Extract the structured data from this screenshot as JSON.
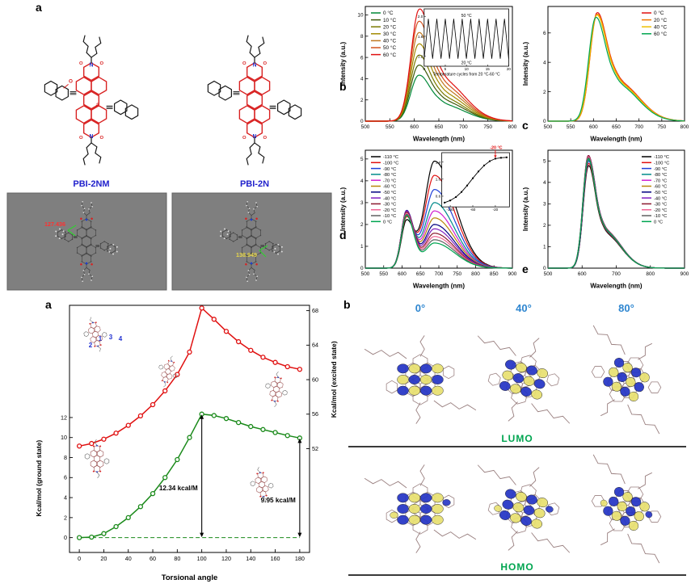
{
  "figure": {
    "chem": {
      "label": "a",
      "molecule_names": [
        "PBI-2NM",
        "PBI-2N"
      ],
      "name_color": "#2222cc",
      "bay_label": "a",
      "methoxy_label": "O",
      "models": [
        {
          "angle": "127.436",
          "color": "#ff3030"
        },
        {
          "angle": "138.949",
          "color": "#e8d84a"
        }
      ]
    },
    "orbitals": {
      "label": "b",
      "angle_headers": [
        "0°",
        "40°",
        "80°"
      ],
      "header_color": "#2e86d0",
      "row_labels": [
        "LUMO",
        "HOMO"
      ],
      "row_label_color": "#00a550"
    }
  },
  "chart_data": [
    {
      "id": "spectrum_b",
      "panel_label": "b",
      "type": "line",
      "xlabel": "Wavelength (nm)",
      "ylabel": "Intensity (a.u.)",
      "xlim": [
        500,
        800
      ],
      "xticks": [
        500,
        550,
        600,
        650,
        700,
        750,
        800
      ],
      "ylim": [
        0,
        10.8
      ],
      "yticks": [
        0,
        2,
        4,
        6,
        8,
        10
      ],
      "legend_pos": "top-left",
      "series": [
        {
          "name": "0 °C",
          "color": "#008837",
          "peaks": [
            [
              608,
              4.1,
              16,
              22
            ],
            [
              656,
              1.55,
              24,
              46
            ]
          ]
        },
        {
          "name": "10 °C",
          "color": "#3f5a0a",
          "peaks": [
            [
              608,
              5.0,
              16,
              22
            ],
            [
              656,
              1.9,
              24,
              46
            ]
          ]
        },
        {
          "name": "20 °C",
          "color": "#7a7a00",
          "peaks": [
            [
              608,
              5.9,
              16,
              22
            ],
            [
              656,
              2.2,
              24,
              46
            ]
          ]
        },
        {
          "name": "30 °C",
          "color": "#a38a00",
          "peaks": [
            [
              608,
              6.9,
              16,
              22
            ],
            [
              656,
              2.6,
              24,
              46
            ]
          ]
        },
        {
          "name": "40 °C",
          "color": "#c07820",
          "peaks": [
            [
              608,
              7.9,
              16,
              22
            ],
            [
              656,
              3.0,
              24,
              46
            ]
          ]
        },
        {
          "name": "50 °C",
          "color": "#d2521e",
          "peaks": [
            [
              608,
              8.9,
              16,
              22
            ],
            [
              656,
              3.4,
              24,
              46
            ]
          ]
        },
        {
          "name": "60 °C",
          "color": "#e01010",
          "peaks": [
            [
              609,
              10.0,
              16,
              22
            ],
            [
              657,
              3.8,
              24,
              46
            ]
          ]
        }
      ],
      "inset": {
        "type": "cycles",
        "xlabel": "Temperature cycles from 20 °C-60 °C",
        "top_label": "50 °C",
        "bottom_label": "20 °C",
        "xlim": [
          0,
          20
        ],
        "xticks": [
          0,
          5,
          10,
          15,
          20
        ],
        "ylim": [
          1.0,
          2.15
        ],
        "yticks": [
          1.2,
          1.6,
          2.0
        ],
        "y_high": 1.95,
        "y_low": 1.15
      }
    },
    {
      "id": "spectrum_c",
      "panel_label": "c",
      "type": "line",
      "xlabel": "Wavelength (nm)",
      "ylabel": "Intensity (a.u.)",
      "xlim": [
        500,
        800
      ],
      "xticks": [
        500,
        550,
        600,
        650,
        700,
        750,
        800
      ],
      "ylim": [
        0,
        7.8
      ],
      "yticks": [
        0,
        2,
        4,
        6
      ],
      "legend_pos": "top-right",
      "series": [
        {
          "name": "0 °C",
          "color": "#e01010",
          "peaks": [
            [
              607,
              7.0,
              15,
              21
            ],
            [
              655,
              2.6,
              24,
              46
            ]
          ]
        },
        {
          "name": "20 °C",
          "color": "#f07800",
          "peaks": [
            [
              607,
              6.9,
              15,
              21
            ],
            [
              655,
              2.55,
              24,
              46
            ]
          ]
        },
        {
          "name": "40 °C",
          "color": "#eec000",
          "peaks": [
            [
              606,
              6.85,
              15,
              21
            ],
            [
              654,
              2.5,
              24,
              46
            ]
          ]
        },
        {
          "name": "60 °C",
          "color": "#00a550",
          "peaks": [
            [
              604,
              6.7,
              15,
              21
            ],
            [
              652,
              2.45,
              24,
              46
            ]
          ]
        }
      ]
    },
    {
      "id": "spectrum_d",
      "panel_label": "d",
      "type": "line",
      "xlabel": "Wavelength (nm)",
      "ylabel": "Intensity (a.u.)",
      "xlim": [
        500,
        900
      ],
      "xticks": [
        500,
        550,
        600,
        650,
        700,
        750,
        800,
        850,
        900
      ],
      "ylim": [
        0,
        5.4
      ],
      "yticks": [
        0,
        1,
        2,
        3,
        4,
        5
      ],
      "legend_pos": "top-left",
      "series": [
        {
          "name": "-110 °C",
          "color": "#000000",
          "peaks": [
            [
              612,
              2.15,
              14,
              20
            ],
            [
              688,
              4.9,
              26,
              55
            ]
          ]
        },
        {
          "name": "-100 °C",
          "color": "#e01010",
          "peaks": [
            [
              612,
              2.3,
              14,
              20
            ],
            [
              688,
              4.25,
              26,
              55
            ]
          ]
        },
        {
          "name": "-90 °C",
          "color": "#2040d8",
          "peaks": [
            [
              612,
              2.4,
              14,
              20
            ],
            [
              688,
              3.6,
              26,
              55
            ]
          ]
        },
        {
          "name": "-80 °C",
          "color": "#008b8b",
          "peaks": [
            [
              612,
              2.5,
              14,
              20
            ],
            [
              688,
              3.0,
              26,
              55
            ]
          ]
        },
        {
          "name": "-70 °C",
          "color": "#d020d0",
          "peaks": [
            [
              612,
              2.55,
              14,
              20
            ],
            [
              688,
              2.62,
              26,
              55
            ]
          ]
        },
        {
          "name": "-60 °C",
          "color": "#b8860b",
          "peaks": [
            [
              612,
              2.6,
              14,
              20
            ],
            [
              688,
              2.3,
              26,
              55
            ]
          ]
        },
        {
          "name": "-50 °C",
          "color": "#000080",
          "peaks": [
            [
              612,
              2.62,
              14,
              20
            ],
            [
              688,
              2.0,
              26,
              55
            ]
          ]
        },
        {
          "name": "-40 °C",
          "color": "#8020c0",
          "peaks": [
            [
              612,
              2.6,
              14,
              20
            ],
            [
              688,
              1.8,
              26,
              55
            ]
          ]
        },
        {
          "name": "-30 °C",
          "color": "#8b1a2f",
          "peaks": [
            [
              612,
              2.55,
              14,
              20
            ],
            [
              688,
              1.6,
              26,
              55
            ]
          ]
        },
        {
          "name": "-20 °C",
          "color": "#f06292",
          "peaks": [
            [
              612,
              2.5,
              14,
              20
            ],
            [
              688,
              1.45,
              26,
              55
            ]
          ]
        },
        {
          "name": "-10 °C",
          "color": "#606060",
          "peaks": [
            [
              612,
              2.45,
              14,
              20
            ],
            [
              688,
              1.3,
              26,
              55
            ]
          ]
        },
        {
          "name": "0 °C",
          "color": "#00a550",
          "peaks": [
            [
              612,
              2.4,
              14,
              20
            ],
            [
              688,
              1.15,
              26,
              55
            ]
          ]
        }
      ],
      "inset": {
        "type": "curve",
        "annotation": "-20 °C",
        "annotation_color": "#e01010",
        "x": [
          -110,
          -100,
          -90,
          -80,
          -70,
          -60,
          -50,
          -40,
          -30,
          -20,
          -10,
          0
        ],
        "y": [
          0.45,
          0.5,
          0.58,
          0.7,
          0.85,
          1.02,
          1.18,
          1.32,
          1.42,
          1.48,
          1.5,
          1.51
        ],
        "ann_x": -20,
        "ann_y": 1.48,
        "xlim": [
          -115,
          5
        ],
        "xticks": [
          -100,
          -60,
          -20
        ],
        "ylim": [
          0.35,
          1.62
        ],
        "yticks": [
          0.6,
          1.0,
          1.4
        ]
      }
    },
    {
      "id": "spectrum_e",
      "panel_label": "e",
      "type": "line",
      "xlabel": "Wavelength (nm)",
      "ylabel": "Intensity (a.u.)",
      "xlim": [
        500,
        900
      ],
      "xticks": [
        500,
        600,
        700,
        800,
        900
      ],
      "ylim": [
        0,
        5.5
      ],
      "yticks": [
        0,
        1,
        2,
        3,
        4,
        5
      ],
      "legend_pos": "top-right",
      "series": [
        {
          "name": "-110 °C",
          "color": "#000000",
          "peaks": [
            [
              618,
              4.55,
              15,
              20
            ],
            [
              666,
              1.59,
              24,
              48
            ]
          ]
        },
        {
          "name": "-100 °C",
          "color": "#e01010",
          "peaks": [
            [
              618,
              4.65,
              15,
              20
            ],
            [
              666,
              1.63,
              24,
              48
            ]
          ]
        },
        {
          "name": "-90 °C",
          "color": "#2040d8",
          "peaks": [
            [
              618,
              4.75,
              15,
              20
            ],
            [
              666,
              1.66,
              24,
              48
            ]
          ]
        },
        {
          "name": "-80 °C",
          "color": "#008b8b",
          "peaks": [
            [
              618,
              4.8,
              15,
              20
            ],
            [
              666,
              1.68,
              24,
              48
            ]
          ]
        },
        {
          "name": "-70 °C",
          "color": "#d020d0",
          "peaks": [
            [
              618,
              4.85,
              15,
              20
            ],
            [
              666,
              1.7,
              24,
              48
            ]
          ]
        },
        {
          "name": "-60 °C",
          "color": "#b8860b",
          "peaks": [
            [
              618,
              4.9,
              15,
              20
            ],
            [
              666,
              1.72,
              24,
              48
            ]
          ]
        },
        {
          "name": "-50 °C",
          "color": "#000080",
          "peaks": [
            [
              618,
              4.95,
              15,
              20
            ],
            [
              666,
              1.73,
              24,
              48
            ]
          ]
        },
        {
          "name": "-40 °C",
          "color": "#8020c0",
          "peaks": [
            [
              617,
              5.0,
              15,
              20
            ],
            [
              665,
              1.75,
              24,
              48
            ]
          ]
        },
        {
          "name": "-30 °C",
          "color": "#8b1a2f",
          "peaks": [
            [
              617,
              5.0,
              15,
              20
            ],
            [
              665,
              1.75,
              24,
              48
            ]
          ]
        },
        {
          "name": "-20 °C",
          "color": "#f06292",
          "peaks": [
            [
              617,
              4.95,
              15,
              20
            ],
            [
              665,
              1.73,
              24,
              48
            ]
          ]
        },
        {
          "name": "-10 °C",
          "color": "#606060",
          "peaks": [
            [
              617,
              4.9,
              15,
              20
            ],
            [
              665,
              1.72,
              24,
              48
            ]
          ]
        },
        {
          "name": "0 °C",
          "color": "#00a550",
          "peaks": [
            [
              617,
              4.85,
              15,
              20
            ],
            [
              665,
              1.7,
              24,
              48
            ]
          ]
        }
      ]
    },
    {
      "id": "energy_scan",
      "panel_label": "a",
      "type": "line",
      "xlabel": "Torsional angle",
      "ylabel_left": "Kcal/mol (ground state)",
      "ylabel_right": "Kcal/mol (excited state)",
      "xlim": [
        -8,
        188
      ],
      "xticks": [
        0,
        20,
        40,
        60,
        80,
        100,
        120,
        140,
        160,
        180
      ],
      "yticks_left": [
        0,
        2,
        4,
        6,
        8,
        10,
        12
      ],
      "yticks_right": [
        52,
        56,
        60,
        64,
        68
      ],
      "baseline_value": 0,
      "atom_labels": [
        "1",
        "2",
        "3",
        "4"
      ],
      "series": [
        {
          "name": "ground state",
          "color": "#1a8a1a",
          "axis": "left",
          "x": [
            0,
            10,
            20,
            30,
            40,
            50,
            60,
            70,
            80,
            90,
            100,
            110,
            120,
            130,
            140,
            150,
            160,
            170,
            180
          ],
          "y": [
            0,
            0.05,
            0.4,
            1.1,
            2.0,
            3.1,
            4.4,
            6.0,
            7.8,
            10.0,
            12.34,
            12.2,
            11.9,
            11.5,
            11.1,
            10.8,
            10.5,
            10.2,
            9.95
          ]
        },
        {
          "name": "excited state",
          "color": "#e01010",
          "axis": "right",
          "x": [
            0,
            10,
            20,
            30,
            40,
            50,
            60,
            70,
            80,
            90,
            100,
            110,
            120,
            130,
            140,
            150,
            160,
            170,
            180
          ],
          "y": [
            52.3,
            52.6,
            53.1,
            53.8,
            54.7,
            55.8,
            57.1,
            58.7,
            60.6,
            63.2,
            68.3,
            67.0,
            65.6,
            64.4,
            63.4,
            62.6,
            62.0,
            61.5,
            61.2
          ]
        }
      ],
      "annotations": [
        {
          "text": "12.34 kcal/M",
          "x": 100,
          "y": 12.34
        },
        {
          "text": "9.95 kcal/M",
          "x": 180,
          "y": 9.95
        }
      ]
    }
  ]
}
